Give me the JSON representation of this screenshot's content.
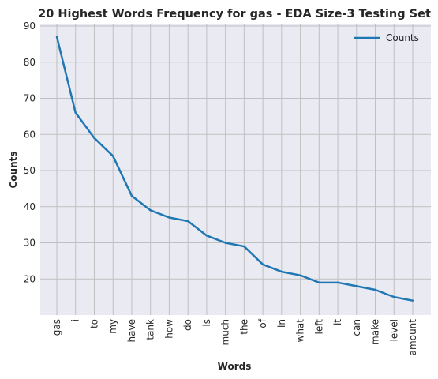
{
  "chart_data": {
    "type": "line",
    "title": "20 Highest Words Frequency for gas - EDA Size-3 Testing Set",
    "xlabel": "Words",
    "ylabel": "Counts",
    "categories": [
      "gas",
      "i",
      "to",
      "my",
      "have",
      "tank",
      "how",
      "do",
      "is",
      "much",
      "the",
      "of",
      "in",
      "what",
      "left",
      "it",
      "can",
      "make",
      "level",
      "amount"
    ],
    "series": [
      {
        "name": "Counts",
        "values": [
          87,
          66,
          59,
          54,
          43,
          39,
          37,
          36,
          32,
          30,
          29,
          24,
          22,
          21,
          19,
          19,
          18,
          17,
          15,
          14
        ]
      }
    ],
    "ylim": [
      10,
      90
    ],
    "yticks": [
      20,
      30,
      40,
      50,
      60,
      70,
      80,
      90
    ],
    "grid": true,
    "legend_position": "top-right",
    "colors": {
      "line": "#1f77b4",
      "plot_background": "#eaeaf2",
      "grid": "#c0c0c0",
      "text": "#262626"
    }
  }
}
